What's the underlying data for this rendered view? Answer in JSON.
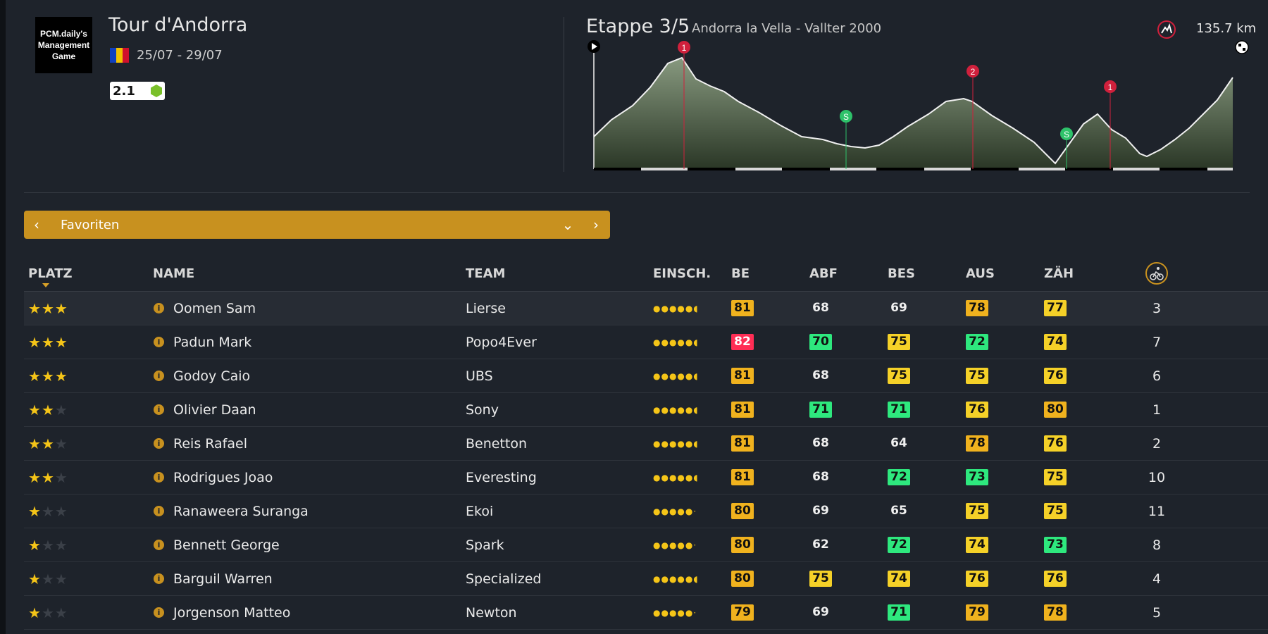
{
  "header": {
    "logo_text": "PCM.daily's\nManagement\nGame",
    "race_title": "Tour d'Andorra",
    "dates": "25/07 - 29/07",
    "category": "2.1",
    "stage_title": "Etappe 3/5",
    "stage_route": "Andorra la Vella - Vallter 2000",
    "distance": "135.7 km"
  },
  "profile_markers": {
    "kom1": "1",
    "kom2": "2",
    "kom3": "1",
    "sprint1": "S",
    "sprint2": "S"
  },
  "filter": {
    "label": "Favoriten"
  },
  "columns": {
    "platz": "PLATZ",
    "name": "NAME",
    "team": "TEAM",
    "einsch": "EINSCH.",
    "be": "BE",
    "abf": "ABF",
    "bes": "BES",
    "aus": "AUS",
    "zah": "ZÄH"
  },
  "colors": {
    "yellow": "#f5d128",
    "orange": "#f0b21e",
    "green": "#2ee87e",
    "red": "#ff2d55",
    "accent": "#c8911f"
  },
  "riders": [
    {
      "stars": 3,
      "name": "Oomen Sam",
      "team": "Lierse",
      "be": "81",
      "be_c": "orange",
      "abf": "68",
      "abf_c": "plain",
      "bes": "69",
      "bes_c": "plain",
      "aus": "78",
      "aus_c": "orange",
      "zah": "77",
      "zah_c": "yellow",
      "rank": "3",
      "dots": "●●●●●◖"
    },
    {
      "stars": 3,
      "name": "Padun Mark",
      "team": "Popo4Ever",
      "be": "82",
      "be_c": "red",
      "abf": "70",
      "abf_c": "green",
      "bes": "75",
      "bes_c": "yellow",
      "aus": "72",
      "aus_c": "green",
      "zah": "74",
      "zah_c": "yellow",
      "rank": "7",
      "dots": "●●●●●◖"
    },
    {
      "stars": 3,
      "name": "Godoy Caio",
      "team": "UBS",
      "be": "81",
      "be_c": "orange",
      "abf": "68",
      "abf_c": "plain",
      "bes": "75",
      "bes_c": "yellow",
      "aus": "75",
      "aus_c": "yellow",
      "zah": "76",
      "zah_c": "yellow",
      "rank": "6",
      "dots": "●●●●●◖"
    },
    {
      "stars": 2,
      "name": "Olivier Daan",
      "team": "Sony",
      "be": "81",
      "be_c": "orange",
      "abf": "71",
      "abf_c": "green",
      "bes": "71",
      "bes_c": "green",
      "aus": "76",
      "aus_c": "yellow",
      "zah": "80",
      "zah_c": "orange",
      "rank": "1",
      "dots": "●●●●●◖"
    },
    {
      "stars": 2,
      "name": "Reis Rafael",
      "team": "Benetton",
      "be": "81",
      "be_c": "orange",
      "abf": "68",
      "abf_c": "plain",
      "bes": "64",
      "bes_c": "plain",
      "aus": "78",
      "aus_c": "orange",
      "zah": "76",
      "zah_c": "yellow",
      "rank": "2",
      "dots": "●●●●●◖"
    },
    {
      "stars": 2,
      "name": "Rodrigues Joao",
      "team": "Everesting",
      "be": "81",
      "be_c": "orange",
      "abf": "68",
      "abf_c": "plain",
      "bes": "72",
      "bes_c": "green",
      "aus": "73",
      "aus_c": "green",
      "zah": "75",
      "zah_c": "yellow",
      "rank": "10",
      "dots": "●●●●●◖"
    },
    {
      "stars": 1,
      "name": "Ranaweera Suranga",
      "team": "Ekoi",
      "be": "80",
      "be_c": "orange",
      "abf": "69",
      "abf_c": "plain",
      "bes": "65",
      "bes_c": "plain",
      "aus": "75",
      "aus_c": "yellow",
      "zah": "75",
      "zah_c": "yellow",
      "rank": "11",
      "dots": "●●●●●·"
    },
    {
      "stars": 1,
      "name": "Bennett George",
      "team": "Spark",
      "be": "80",
      "be_c": "orange",
      "abf": "62",
      "abf_c": "plain",
      "bes": "72",
      "bes_c": "green",
      "aus": "74",
      "aus_c": "yellow",
      "zah": "73",
      "zah_c": "green",
      "rank": "8",
      "dots": "●●●●●·"
    },
    {
      "stars": 1,
      "name": "Barguil Warren",
      "team": "Specialized",
      "be": "80",
      "be_c": "orange",
      "abf": "75",
      "abf_c": "yellow",
      "bes": "74",
      "bes_c": "yellow",
      "aus": "76",
      "aus_c": "yellow",
      "zah": "76",
      "zah_c": "yellow",
      "rank": "4",
      "dots": "●●●●●◖"
    },
    {
      "stars": 1,
      "name": "Jorgenson Matteo",
      "team": "Newton",
      "be": "79",
      "be_c": "orange",
      "abf": "69",
      "abf_c": "plain",
      "bes": "71",
      "bes_c": "green",
      "aus": "79",
      "aus_c": "orange",
      "zah": "78",
      "zah_c": "orange",
      "rank": "5",
      "dots": "●●●●●·"
    }
  ]
}
